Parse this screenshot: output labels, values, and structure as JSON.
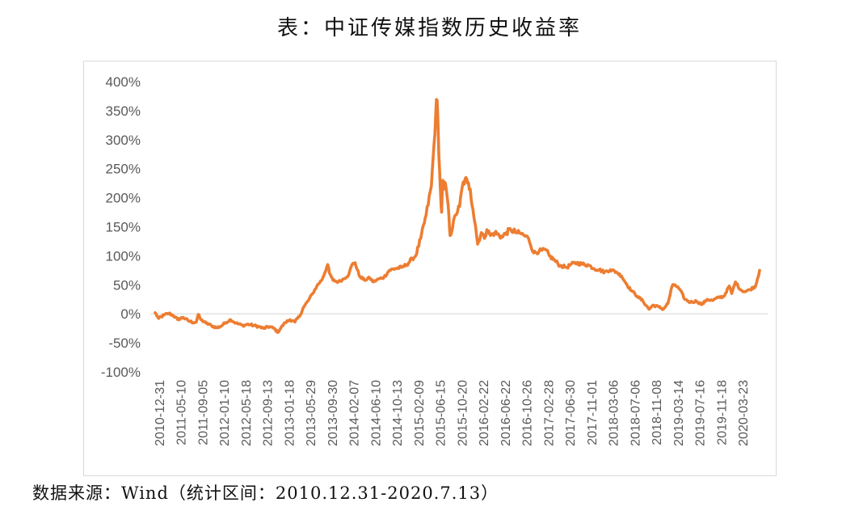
{
  "title": "表：中证传媒指数历史收益率",
  "source": "数据来源：Wind（统计区间：2010.12.31-2020.7.13）",
  "chart_data": {
    "type": "line",
    "title": "表：中证传媒指数历史收益率",
    "xlabel": "",
    "ylabel": "",
    "y_unit": "%",
    "ylim": [
      -100,
      400
    ],
    "y_ticks": [
      400,
      350,
      300,
      250,
      200,
      150,
      100,
      50,
      0,
      -50,
      -100
    ],
    "y_tick_labels": [
      "400%",
      "350%",
      "300%",
      "250%",
      "200%",
      "150%",
      "100%",
      "50%",
      "0%",
      "-50%",
      "-100%"
    ],
    "x_tick_labels": [
      "2010-12-31",
      "2011-05-10",
      "2011-09-05",
      "2012-01-10",
      "2012-05-18",
      "2012-09-13",
      "2013-01-18",
      "2013-05-29",
      "2013-09-30",
      "2014-02-07",
      "2014-06-10",
      "2014-10-13",
      "2015-02-09",
      "2015-06-15",
      "2015-10-20",
      "2016-02-22",
      "2016-06-22",
      "2016-10-26",
      "2017-02-28",
      "2017-06-30",
      "2017-11-01",
      "2018-03-06",
      "2018-07-06",
      "2018-11-08",
      "2019-03-14",
      "2019-07-16",
      "2019-11-18",
      "2020-03-23"
    ],
    "line_color": "#ED7D31",
    "grid": false,
    "legend": "none",
    "series": [
      {
        "points": [
          [
            "2010-12-31",
            2
          ],
          [
            "2011-01-20",
            -8
          ],
          [
            "2011-02-20",
            -2
          ],
          [
            "2011-03-20",
            1
          ],
          [
            "2011-04-15",
            -3
          ],
          [
            "2011-05-10",
            -10
          ],
          [
            "2011-06-10",
            -6
          ],
          [
            "2011-07-10",
            -12
          ],
          [
            "2011-08-10",
            -15
          ],
          [
            "2011-08-25",
            -14
          ],
          [
            "2011-09-05",
            -1
          ],
          [
            "2011-09-20",
            -10
          ],
          [
            "2011-10-20",
            -16
          ],
          [
            "2011-11-20",
            -20
          ],
          [
            "2011-12-20",
            -24
          ],
          [
            "2012-01-10",
            -22
          ],
          [
            "2012-02-10",
            -15
          ],
          [
            "2012-03-10",
            -10
          ],
          [
            "2012-04-10",
            -16
          ],
          [
            "2012-05-18",
            -20
          ],
          [
            "2012-06-20",
            -18
          ],
          [
            "2012-07-20",
            -20
          ],
          [
            "2012-08-20",
            -22
          ],
          [
            "2012-09-13",
            -25
          ],
          [
            "2012-10-20",
            -22
          ],
          [
            "2012-11-20",
            -26
          ],
          [
            "2012-12-05",
            -32
          ],
          [
            "2012-12-25",
            -24
          ],
          [
            "2013-01-18",
            -15
          ],
          [
            "2013-02-15",
            -10
          ],
          [
            "2013-03-15",
            -14
          ],
          [
            "2013-04-15",
            -2
          ],
          [
            "2013-05-01",
            10
          ],
          [
            "2013-05-29",
            22
          ],
          [
            "2013-06-25",
            35
          ],
          [
            "2013-07-20",
            48
          ],
          [
            "2013-08-20",
            60
          ],
          [
            "2013-09-20",
            85
          ],
          [
            "2013-09-30",
            70
          ],
          [
            "2013-10-20",
            58
          ],
          [
            "2013-11-20",
            55
          ],
          [
            "2013-12-20",
            60
          ],
          [
            "2014-01-20",
            68
          ],
          [
            "2014-02-07",
            85
          ],
          [
            "2014-02-25",
            88
          ],
          [
            "2014-03-20",
            66
          ],
          [
            "2014-04-20",
            58
          ],
          [
            "2014-05-20",
            62
          ],
          [
            "2014-06-10",
            55
          ],
          [
            "2014-07-10",
            60
          ],
          [
            "2014-08-10",
            63
          ],
          [
            "2014-09-10",
            75
          ],
          [
            "2014-10-13",
            78
          ],
          [
            "2014-11-20",
            80
          ],
          [
            "2014-12-20",
            85
          ],
          [
            "2015-01-20",
            95
          ],
          [
            "2015-02-09",
            100
          ],
          [
            "2015-03-10",
            130
          ],
          [
            "2015-04-10",
            170
          ],
          [
            "2015-05-10",
            220
          ],
          [
            "2015-05-25",
            290
          ],
          [
            "2015-06-05",
            350
          ],
          [
            "2015-06-12",
            368
          ],
          [
            "2015-06-18",
            320
          ],
          [
            "2015-06-26",
            250
          ],
          [
            "2015-07-03",
            200
          ],
          [
            "2015-07-08",
            175
          ],
          [
            "2015-07-15",
            230
          ],
          [
            "2015-07-22",
            215
          ],
          [
            "2015-07-30",
            225
          ],
          [
            "2015-08-10",
            200
          ],
          [
            "2015-08-20",
            165
          ],
          [
            "2015-08-26",
            135
          ],
          [
            "2015-09-10",
            150
          ],
          [
            "2015-09-25",
            170
          ],
          [
            "2015-10-20",
            185
          ],
          [
            "2015-11-05",
            220
          ],
          [
            "2015-11-20",
            232
          ],
          [
            "2015-12-05",
            225
          ],
          [
            "2015-12-20",
            215
          ],
          [
            "2016-01-05",
            180
          ],
          [
            "2016-01-20",
            150
          ],
          [
            "2016-02-01",
            120
          ],
          [
            "2016-02-22",
            140
          ],
          [
            "2016-03-10",
            130
          ],
          [
            "2016-03-25",
            145
          ],
          [
            "2016-04-15",
            135
          ],
          [
            "2016-05-10",
            140
          ],
          [
            "2016-06-22",
            132
          ],
          [
            "2016-07-15",
            140
          ],
          [
            "2016-08-10",
            145
          ],
          [
            "2016-09-10",
            140
          ],
          [
            "2016-10-10",
            138
          ],
          [
            "2016-10-26",
            135
          ],
          [
            "2016-11-20",
            130
          ],
          [
            "2016-12-20",
            105
          ],
          [
            "2017-01-20",
            108
          ],
          [
            "2017-02-28",
            110
          ],
          [
            "2017-03-20",
            100
          ],
          [
            "2017-04-20",
            92
          ],
          [
            "2017-05-20",
            83
          ],
          [
            "2017-06-30",
            80
          ],
          [
            "2017-07-20",
            85
          ],
          [
            "2017-08-20",
            88
          ],
          [
            "2017-09-20",
            86
          ],
          [
            "2017-11-01",
            84
          ],
          [
            "2017-12-01",
            78
          ],
          [
            "2018-01-01",
            76
          ],
          [
            "2018-02-01",
            72
          ],
          [
            "2018-03-06",
            76
          ],
          [
            "2018-04-10",
            72
          ],
          [
            "2018-05-10",
            65
          ],
          [
            "2018-06-10",
            50
          ],
          [
            "2018-07-06",
            40
          ],
          [
            "2018-08-10",
            30
          ],
          [
            "2018-09-10",
            22
          ],
          [
            "2018-10-15",
            8
          ],
          [
            "2018-11-08",
            15
          ],
          [
            "2018-12-10",
            12
          ],
          [
            "2019-01-05",
            8
          ],
          [
            "2019-02-01",
            18
          ],
          [
            "2019-02-25",
            48
          ],
          [
            "2019-03-14",
            50
          ],
          [
            "2019-04-10",
            42
          ],
          [
            "2019-05-10",
            25
          ],
          [
            "2019-06-10",
            20
          ],
          [
            "2019-07-16",
            22
          ],
          [
            "2019-08-15",
            16
          ],
          [
            "2019-09-15",
            25
          ],
          [
            "2019-10-15",
            23
          ],
          [
            "2019-11-18",
            28
          ],
          [
            "2019-12-20",
            30
          ],
          [
            "2020-01-20",
            48
          ],
          [
            "2020-02-03",
            35
          ],
          [
            "2020-02-25",
            55
          ],
          [
            "2020-03-23",
            42
          ],
          [
            "2020-04-20",
            38
          ],
          [
            "2020-05-20",
            42
          ],
          [
            "2020-06-20",
            48
          ],
          [
            "2020-07-13",
            75
          ]
        ]
      }
    ]
  }
}
